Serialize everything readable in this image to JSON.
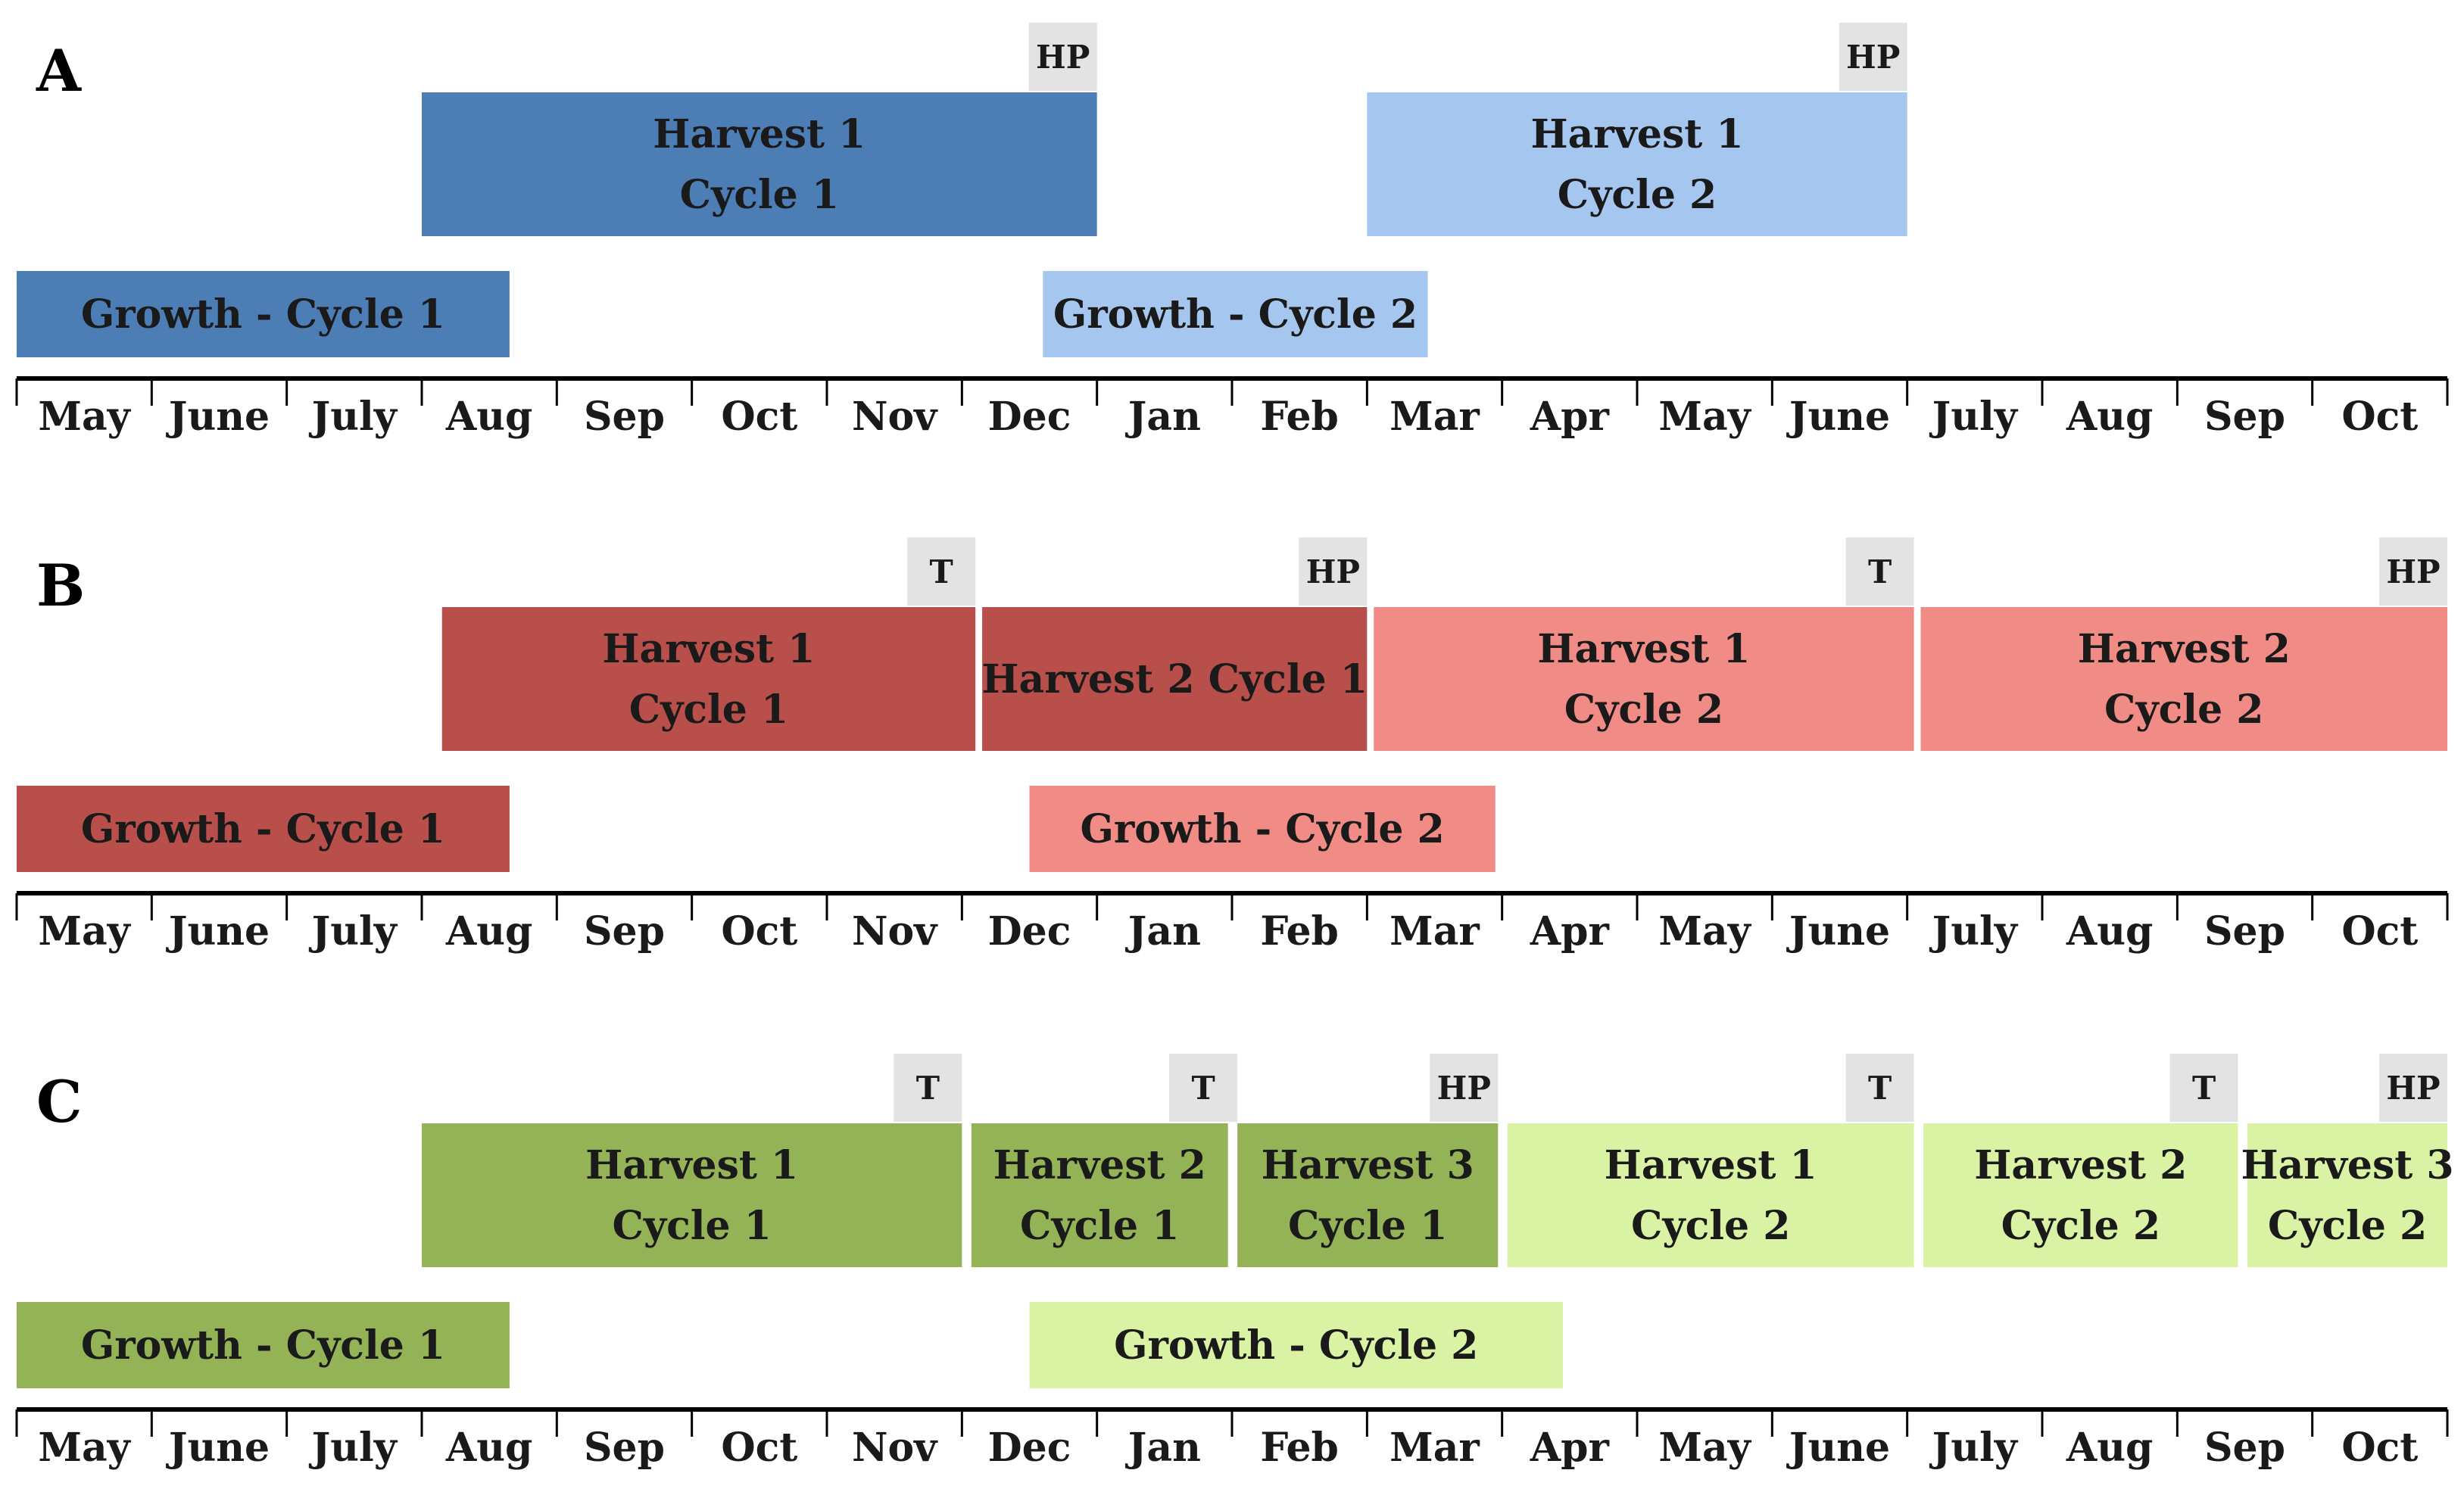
{
  "months": [
    "May",
    "June",
    "July",
    "Aug",
    "Sep",
    "Oct",
    "Nov",
    "Dec",
    "Jan",
    "Feb",
    "Mar",
    "Apr",
    "May",
    "June",
    "July",
    "Aug",
    "Sep",
    "Oct"
  ],
  "panels": [
    {
      "label": "A",
      "colors": {
        "cycle1": "#4d7db5",
        "cycle2": "#a5c6ee"
      },
      "harvests": [
        {
          "lines": [
            "Harvest 1",
            "Cycle 1"
          ],
          "start": 3.0,
          "end": 8.0,
          "cycle": 1
        },
        {
          "lines": [
            "Harvest 1",
            "Cycle 2"
          ],
          "start": 10.0,
          "end": 14.0,
          "cycle": 2
        }
      ],
      "growth": [
        {
          "lines": [
            "Growth - Cycle 1"
          ],
          "start": 0.0,
          "end": 3.65,
          "cycle": 1
        },
        {
          "lines": [
            "Growth - Cycle 2"
          ],
          "start": 7.6,
          "end": 10.45,
          "cycle": 2
        }
      ],
      "tags": [
        {
          "text": "HP",
          "at": 8.0
        },
        {
          "text": "HP",
          "at": 14.0
        }
      ]
    },
    {
      "label": "B",
      "colors": {
        "cycle1": "#b84f4b",
        "cycle2": "#f08b85"
      },
      "harvests": [
        {
          "lines": [
            "Harvest 1",
            "Cycle 1"
          ],
          "start": 3.15,
          "end": 7.1,
          "cycle": 1
        },
        {
          "lines": [
            "Harvest 2 Cycle 1"
          ],
          "start": 7.15,
          "end": 10.0,
          "cycle": 1
        },
        {
          "lines": [
            "Harvest 1",
            "Cycle 2"
          ],
          "start": 10.05,
          "end": 14.05,
          "cycle": 2
        },
        {
          "lines": [
            "Harvest 2",
            "Cycle 2"
          ],
          "start": 14.1,
          "end": 18.0,
          "cycle": 2
        }
      ],
      "growth": [
        {
          "lines": [
            "Growth - Cycle 1"
          ],
          "start": 0.0,
          "end": 3.65,
          "cycle": 1
        },
        {
          "lines": [
            "Growth - Cycle 2"
          ],
          "start": 7.5,
          "end": 10.95,
          "cycle": 2
        }
      ],
      "tags": [
        {
          "text": "T",
          "at": 7.1
        },
        {
          "text": "HP",
          "at": 10.0
        },
        {
          "text": "T",
          "at": 14.05
        },
        {
          "text": "HP",
          "at": 18.0
        }
      ]
    },
    {
      "label": "C",
      "colors": {
        "cycle1": "#94b356",
        "cycle2": "#d9f2a3"
      },
      "harvests": [
        {
          "lines": [
            "Harvest 1",
            "Cycle 1"
          ],
          "start": 3.0,
          "end": 7.0,
          "cycle": 1
        },
        {
          "lines": [
            "Harvest 2",
            "Cycle 1"
          ],
          "start": 7.07,
          "end": 8.97,
          "cycle": 1
        },
        {
          "lines": [
            "Harvest 3",
            "Cycle 1"
          ],
          "start": 9.04,
          "end": 10.97,
          "cycle": 1
        },
        {
          "lines": [
            "Harvest 1",
            "Cycle 2"
          ],
          "start": 11.04,
          "end": 14.05,
          "cycle": 2
        },
        {
          "lines": [
            "Harvest 2",
            "Cycle 2"
          ],
          "start": 14.12,
          "end": 16.45,
          "cycle": 2
        },
        {
          "lines": [
            "Harvest 3",
            "Cycle 2"
          ],
          "start": 16.52,
          "end": 18.0,
          "cycle": 2
        }
      ],
      "growth": [
        {
          "lines": [
            "Growth - Cycle 1"
          ],
          "start": 0.0,
          "end": 3.65,
          "cycle": 1
        },
        {
          "lines": [
            "Growth - Cycle 2"
          ],
          "start": 7.5,
          "end": 11.45,
          "cycle": 2
        }
      ],
      "tags": [
        {
          "text": "T",
          "at": 7.0
        },
        {
          "text": "T",
          "at": 9.04
        },
        {
          "text": "HP",
          "at": 10.97
        },
        {
          "text": "T",
          "at": 14.05
        },
        {
          "text": "T",
          "at": 16.45
        },
        {
          "text": "HP",
          "at": 18.0
        }
      ]
    }
  ],
  "tag_color": "#e3e3e3"
}
